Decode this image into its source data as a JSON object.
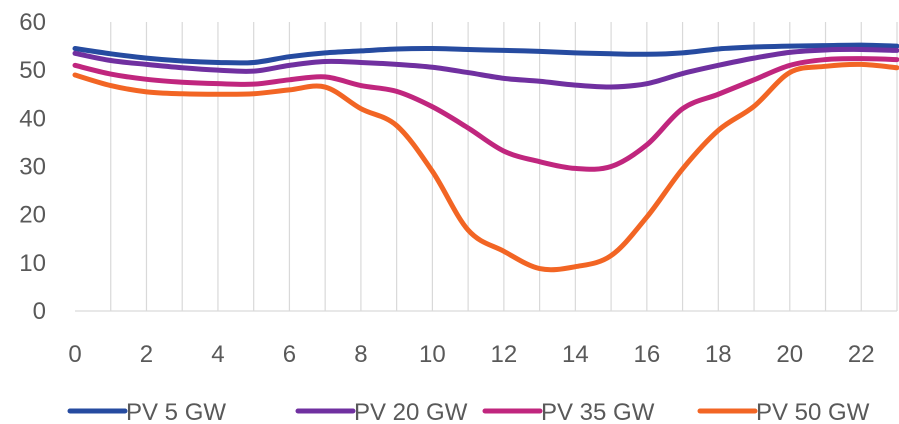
{
  "chart_data": {
    "type": "line",
    "title": "",
    "xlabel": "",
    "ylabel": "",
    "xlim": [
      0,
      23
    ],
    "ylim": [
      0,
      60
    ],
    "x_ticks": [
      0,
      2,
      4,
      6,
      8,
      10,
      12,
      14,
      16,
      18,
      20,
      22
    ],
    "y_ticks": [
      0,
      10,
      20,
      30,
      40,
      50,
      60
    ],
    "grid": "vertical",
    "legend": "bottom",
    "x": [
      0,
      1,
      2,
      3,
      4,
      5,
      6,
      7,
      8,
      9,
      10,
      11,
      12,
      13,
      14,
      15,
      16,
      17,
      18,
      19,
      20,
      21,
      22,
      23
    ],
    "series": [
      {
        "name": "PV 5 GW",
        "color": "#264BA0",
        "values": [
          54.5,
          53.4,
          52.5,
          51.9,
          51.6,
          51.6,
          52.8,
          53.6,
          54.0,
          54.4,
          54.5,
          54.3,
          54.1,
          53.9,
          53.6,
          53.4,
          53.3,
          53.6,
          54.4,
          54.8,
          55.0,
          55.1,
          55.2,
          55.0
        ]
      },
      {
        "name": "PV 20 GW",
        "color": "#7030A0",
        "values": [
          53.5,
          52.0,
          51.2,
          50.5,
          50.0,
          49.8,
          51.0,
          51.8,
          51.6,
          51.2,
          50.6,
          49.5,
          48.3,
          47.7,
          46.9,
          46.5,
          47.2,
          49.3,
          51.0,
          52.5,
          53.7,
          54.2,
          54.3,
          54.1
        ]
      },
      {
        "name": "PV 35 GW",
        "color": "#C0267E",
        "values": [
          51.0,
          49.2,
          48.1,
          47.5,
          47.2,
          47.1,
          48.0,
          48.6,
          46.8,
          45.6,
          42.4,
          38.0,
          33.2,
          31.0,
          29.6,
          30.0,
          34.5,
          42.0,
          45.0,
          48.0,
          51.0,
          52.2,
          52.4,
          52.2
        ]
      },
      {
        "name": "PV 50 GW",
        "color": "#F26524",
        "values": [
          49.0,
          46.8,
          45.5,
          45.1,
          45.0,
          45.1,
          45.9,
          46.5,
          42.0,
          38.5,
          29.0,
          16.8,
          12.4,
          8.8,
          9.2,
          11.5,
          19.5,
          29.5,
          37.5,
          42.5,
          49.5,
          50.8,
          51.2,
          50.5
        ]
      }
    ]
  }
}
